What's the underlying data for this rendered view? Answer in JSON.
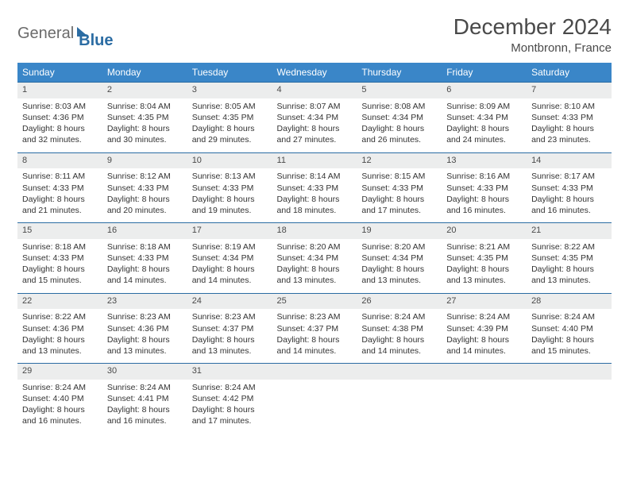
{
  "logo": {
    "part1": "General",
    "part2": "Blue"
  },
  "title": "December 2024",
  "location": "Montbronn, France",
  "dayHeaders": [
    "Sunday",
    "Monday",
    "Tuesday",
    "Wednesday",
    "Thursday",
    "Friday",
    "Saturday"
  ],
  "colors": {
    "headerBg": "#3a86c8",
    "rowStripe": "#eceded",
    "rowDivider": "#2b6ca3",
    "text": "#333333",
    "titleText": "#4a4a4a"
  },
  "weeks": [
    [
      {
        "num": "1",
        "sunrise": "8:03 AM",
        "sunset": "4:36 PM",
        "daylight": "8 hours and 32 minutes."
      },
      {
        "num": "2",
        "sunrise": "8:04 AM",
        "sunset": "4:35 PM",
        "daylight": "8 hours and 30 minutes."
      },
      {
        "num": "3",
        "sunrise": "8:05 AM",
        "sunset": "4:35 PM",
        "daylight": "8 hours and 29 minutes."
      },
      {
        "num": "4",
        "sunrise": "8:07 AM",
        "sunset": "4:34 PM",
        "daylight": "8 hours and 27 minutes."
      },
      {
        "num": "5",
        "sunrise": "8:08 AM",
        "sunset": "4:34 PM",
        "daylight": "8 hours and 26 minutes."
      },
      {
        "num": "6",
        "sunrise": "8:09 AM",
        "sunset": "4:34 PM",
        "daylight": "8 hours and 24 minutes."
      },
      {
        "num": "7",
        "sunrise": "8:10 AM",
        "sunset": "4:33 PM",
        "daylight": "8 hours and 23 minutes."
      }
    ],
    [
      {
        "num": "8",
        "sunrise": "8:11 AM",
        "sunset": "4:33 PM",
        "daylight": "8 hours and 21 minutes."
      },
      {
        "num": "9",
        "sunrise": "8:12 AM",
        "sunset": "4:33 PM",
        "daylight": "8 hours and 20 minutes."
      },
      {
        "num": "10",
        "sunrise": "8:13 AM",
        "sunset": "4:33 PM",
        "daylight": "8 hours and 19 minutes."
      },
      {
        "num": "11",
        "sunrise": "8:14 AM",
        "sunset": "4:33 PM",
        "daylight": "8 hours and 18 minutes."
      },
      {
        "num": "12",
        "sunrise": "8:15 AM",
        "sunset": "4:33 PM",
        "daylight": "8 hours and 17 minutes."
      },
      {
        "num": "13",
        "sunrise": "8:16 AM",
        "sunset": "4:33 PM",
        "daylight": "8 hours and 16 minutes."
      },
      {
        "num": "14",
        "sunrise": "8:17 AM",
        "sunset": "4:33 PM",
        "daylight": "8 hours and 16 minutes."
      }
    ],
    [
      {
        "num": "15",
        "sunrise": "8:18 AM",
        "sunset": "4:33 PM",
        "daylight": "8 hours and 15 minutes."
      },
      {
        "num": "16",
        "sunrise": "8:18 AM",
        "sunset": "4:33 PM",
        "daylight": "8 hours and 14 minutes."
      },
      {
        "num": "17",
        "sunrise": "8:19 AM",
        "sunset": "4:34 PM",
        "daylight": "8 hours and 14 minutes."
      },
      {
        "num": "18",
        "sunrise": "8:20 AM",
        "sunset": "4:34 PM",
        "daylight": "8 hours and 13 minutes."
      },
      {
        "num": "19",
        "sunrise": "8:20 AM",
        "sunset": "4:34 PM",
        "daylight": "8 hours and 13 minutes."
      },
      {
        "num": "20",
        "sunrise": "8:21 AM",
        "sunset": "4:35 PM",
        "daylight": "8 hours and 13 minutes."
      },
      {
        "num": "21",
        "sunrise": "8:22 AM",
        "sunset": "4:35 PM",
        "daylight": "8 hours and 13 minutes."
      }
    ],
    [
      {
        "num": "22",
        "sunrise": "8:22 AM",
        "sunset": "4:36 PM",
        "daylight": "8 hours and 13 minutes."
      },
      {
        "num": "23",
        "sunrise": "8:23 AM",
        "sunset": "4:36 PM",
        "daylight": "8 hours and 13 minutes."
      },
      {
        "num": "24",
        "sunrise": "8:23 AM",
        "sunset": "4:37 PM",
        "daylight": "8 hours and 13 minutes."
      },
      {
        "num": "25",
        "sunrise": "8:23 AM",
        "sunset": "4:37 PM",
        "daylight": "8 hours and 14 minutes."
      },
      {
        "num": "26",
        "sunrise": "8:24 AM",
        "sunset": "4:38 PM",
        "daylight": "8 hours and 14 minutes."
      },
      {
        "num": "27",
        "sunrise": "8:24 AM",
        "sunset": "4:39 PM",
        "daylight": "8 hours and 14 minutes."
      },
      {
        "num": "28",
        "sunrise": "8:24 AM",
        "sunset": "4:40 PM",
        "daylight": "8 hours and 15 minutes."
      }
    ],
    [
      {
        "num": "29",
        "sunrise": "8:24 AM",
        "sunset": "4:40 PM",
        "daylight": "8 hours and 16 minutes."
      },
      {
        "num": "30",
        "sunrise": "8:24 AM",
        "sunset": "4:41 PM",
        "daylight": "8 hours and 16 minutes."
      },
      {
        "num": "31",
        "sunrise": "8:24 AM",
        "sunset": "4:42 PM",
        "daylight": "8 hours and 17 minutes."
      },
      null,
      null,
      null,
      null
    ]
  ],
  "labels": {
    "sunrise": "Sunrise: ",
    "sunset": "Sunset: ",
    "daylight": "Daylight: "
  }
}
